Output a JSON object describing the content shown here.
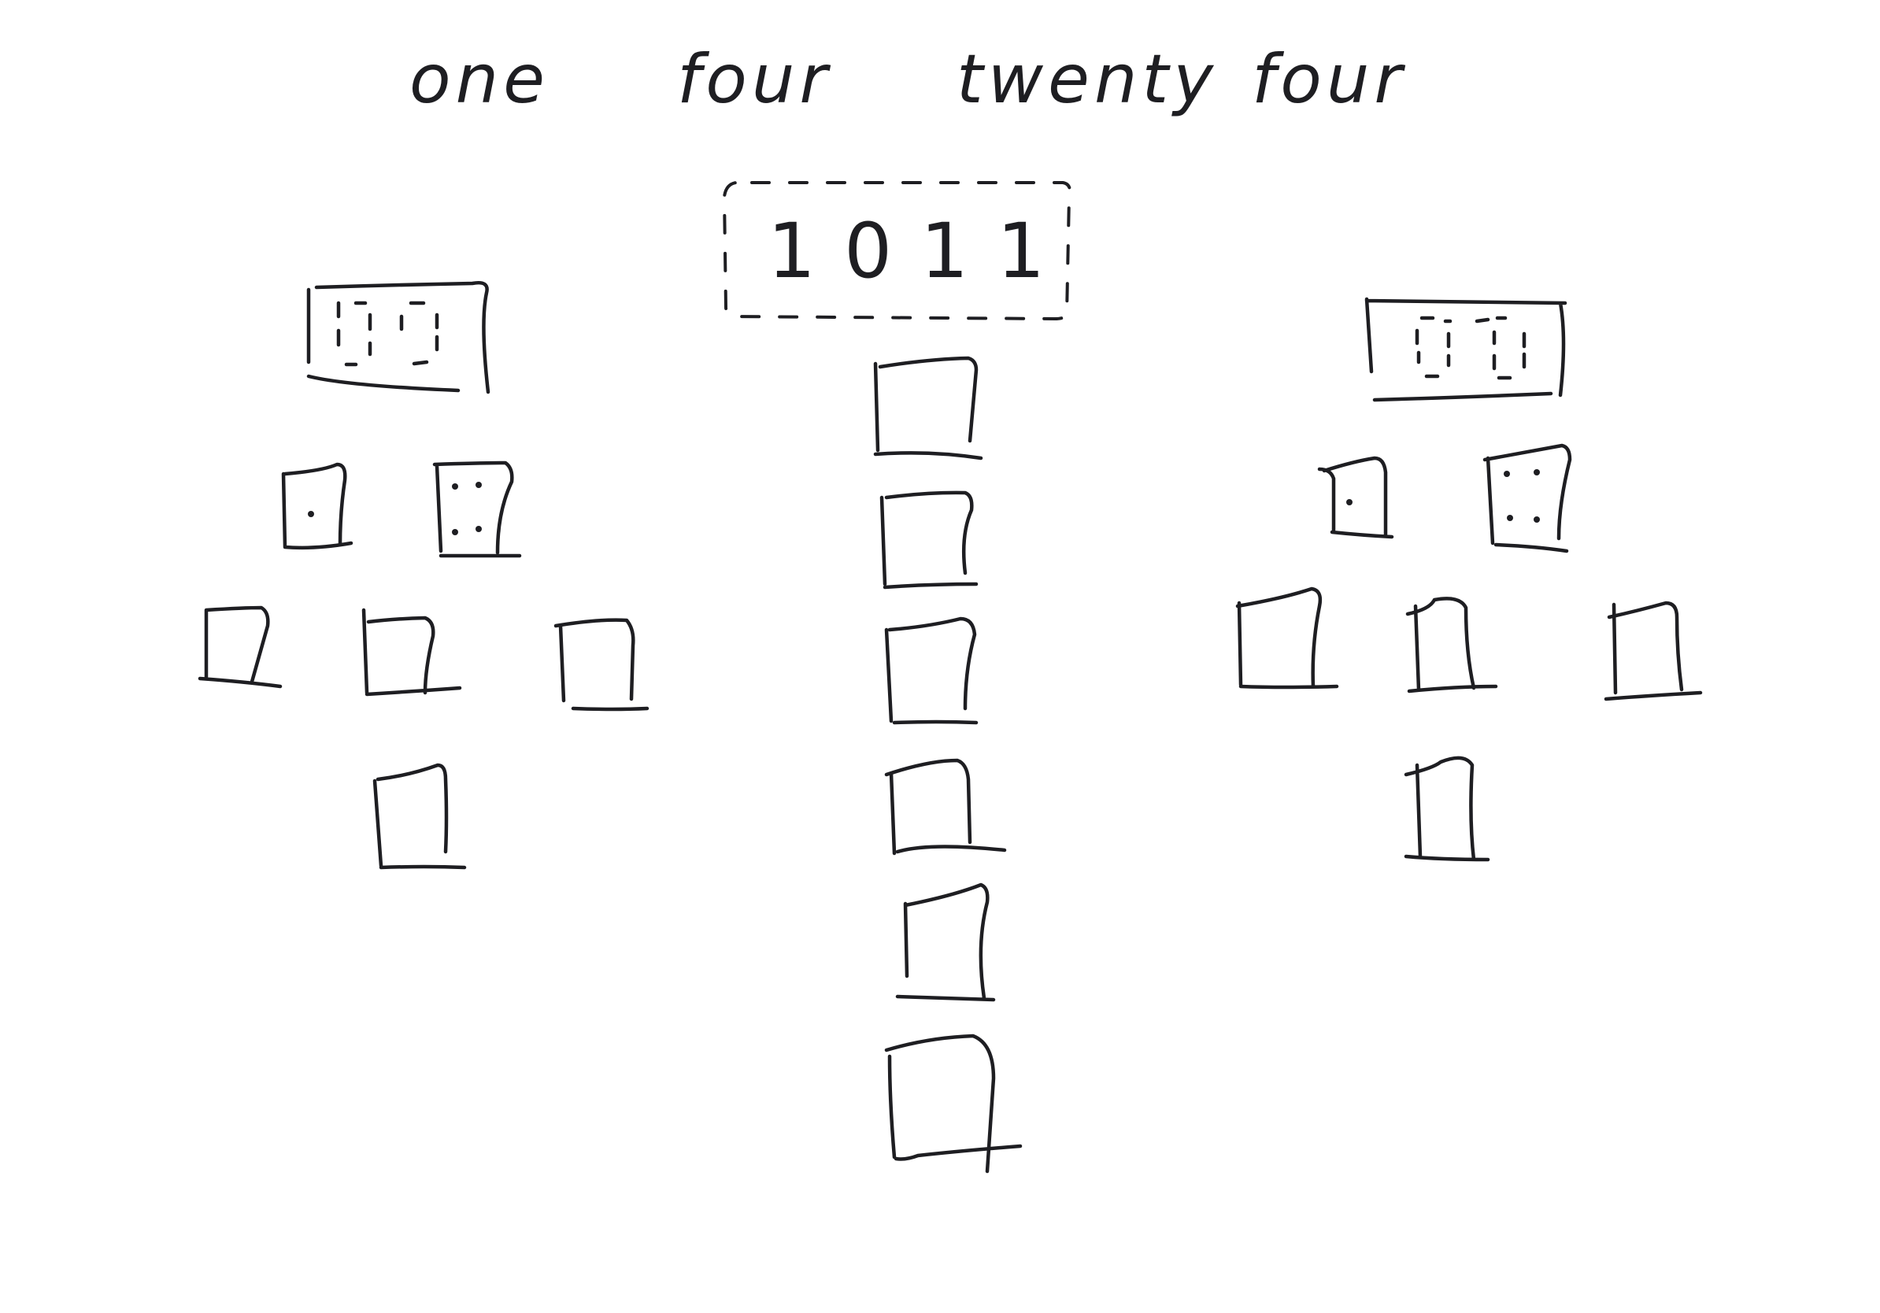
{
  "heading": {
    "words": [
      "one",
      "four",
      "twenty",
      "four"
    ]
  },
  "reference_box": {
    "digits": "1011"
  },
  "columns": [
    {
      "name": "left",
      "grid_tenths": "|:|:|",
      "top_block_dots": [
        1,
        4
      ],
      "square_rows": [
        2,
        3,
        1
      ]
    },
    {
      "name": "center",
      "square_count": 6
    },
    {
      "name": "right",
      "top_block_dots": [
        1,
        4
      ],
      "square_rows": [
        2,
        3,
        1
      ]
    }
  ]
}
